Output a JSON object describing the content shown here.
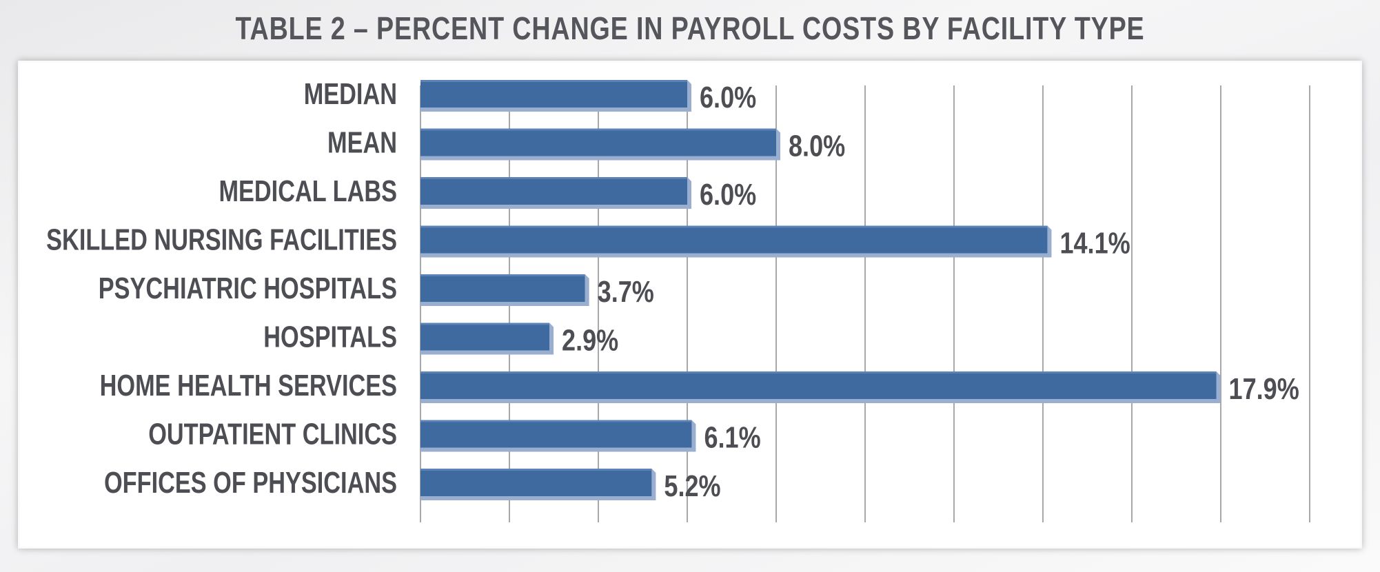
{
  "chart_data": {
    "type": "bar",
    "orientation": "horizontal",
    "title": "TABLE 2 – PERCENT CHANGE IN PAYROLL COSTS BY FACILITY TYPE",
    "categories": [
      "MEDIAN",
      "MEAN",
      "MEDICAL LABS",
      "SKILLED NURSING FACILITIES",
      "PSYCHIATRIC HOSPITALS",
      "HOSPITALS",
      "HOME HEALTH SERVICES",
      "OUTPATIENT CLINICS",
      "OFFICES OF PHYSICIANS"
    ],
    "values": [
      6.0,
      8.0,
      6.0,
      14.1,
      3.7,
      2.9,
      17.9,
      6.1,
      5.2
    ],
    "value_labels": [
      "6.0%",
      "8.0%",
      "6.0%",
      "14.1%",
      "3.7%",
      "2.9%",
      "17.9%",
      "6.1%",
      "5.2%"
    ],
    "xlim": [
      0,
      20
    ],
    "grid": true,
    "xlabel": "",
    "ylabel": "",
    "colors": {
      "bar": "#3f6aa0",
      "bar_shadow": "#9aaed0",
      "grid": "#a7a8ac",
      "text": "#4d4e53"
    }
  }
}
